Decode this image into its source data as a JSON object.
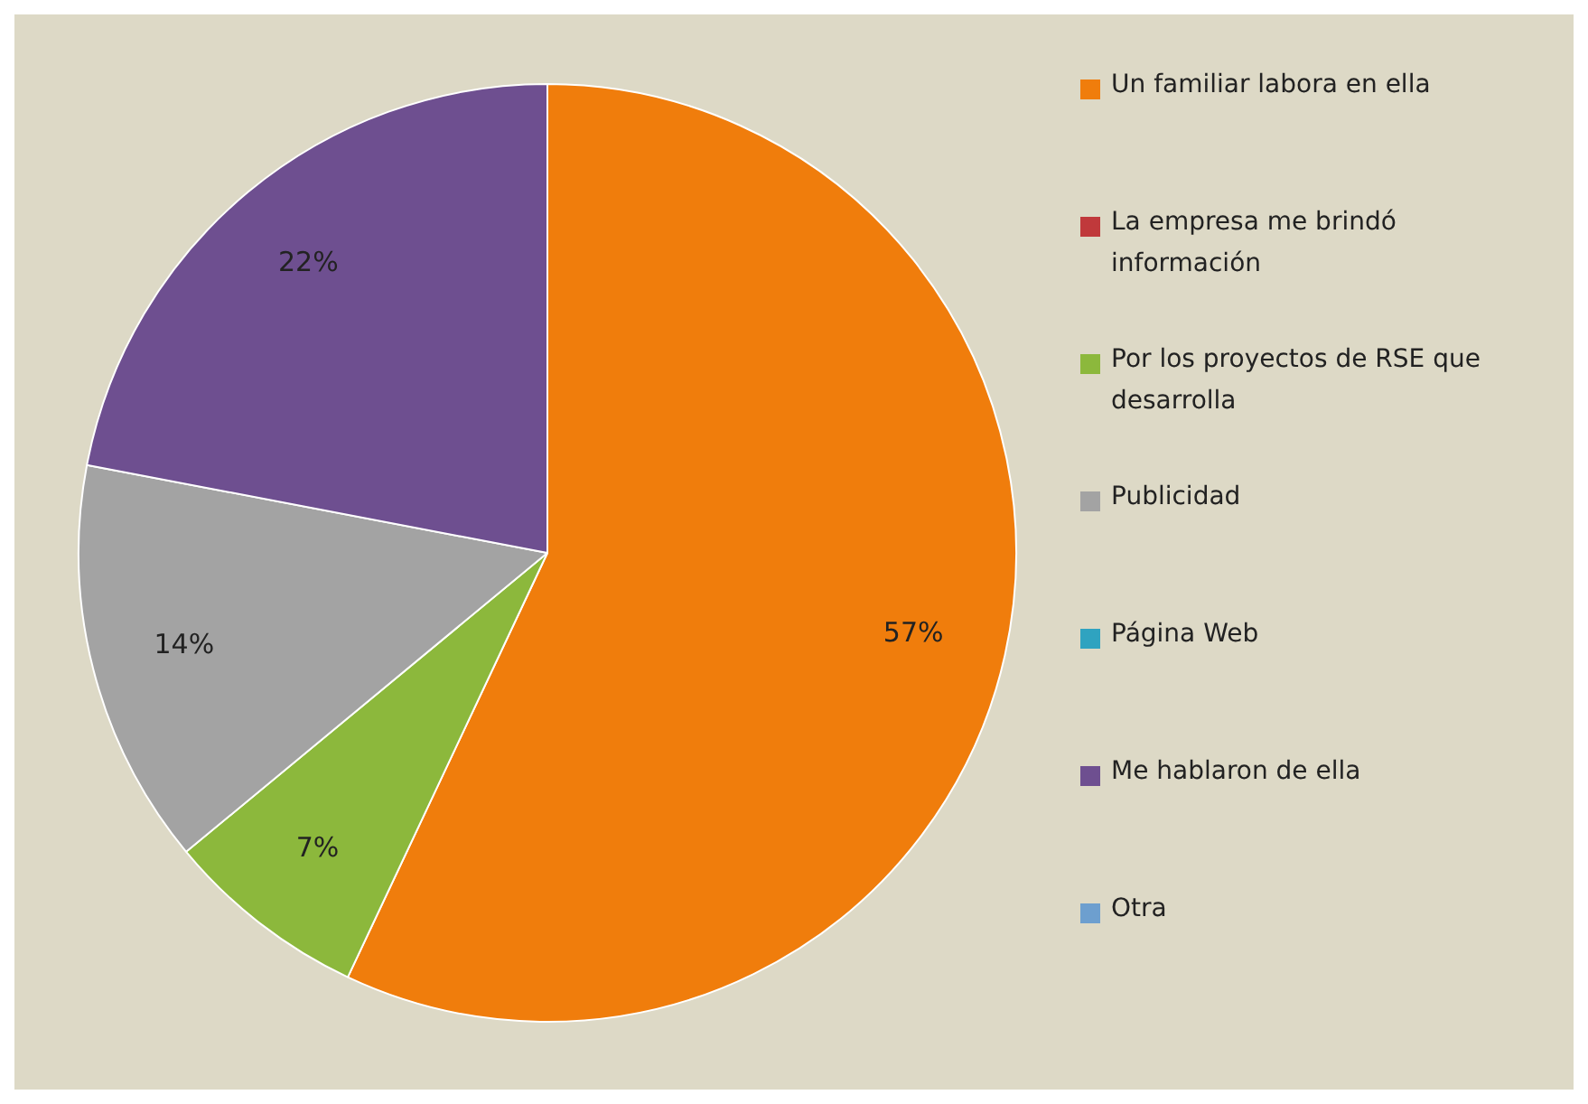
{
  "chart_data": {
    "type": "pie",
    "categories": [
      "Un familiar labora en ella",
      "La empresa me brindó información",
      "Por los proyectos de RSE que desarrolla",
      "Publicidad",
      "Página Web",
      "Me hablaron de ella",
      "Otra"
    ],
    "values": [
      57,
      0,
      7,
      14,
      0,
      22,
      0
    ],
    "value_labels": [
      "57%",
      null,
      "7%",
      "14%",
      null,
      "22%",
      null
    ],
    "colors": [
      "#f07d0c",
      "#c0393b",
      "#8cb83c",
      "#a3a3a3",
      "#2fa3c0",
      "#6e4f90",
      "#6d9fcf"
    ],
    "legend": "right"
  }
}
